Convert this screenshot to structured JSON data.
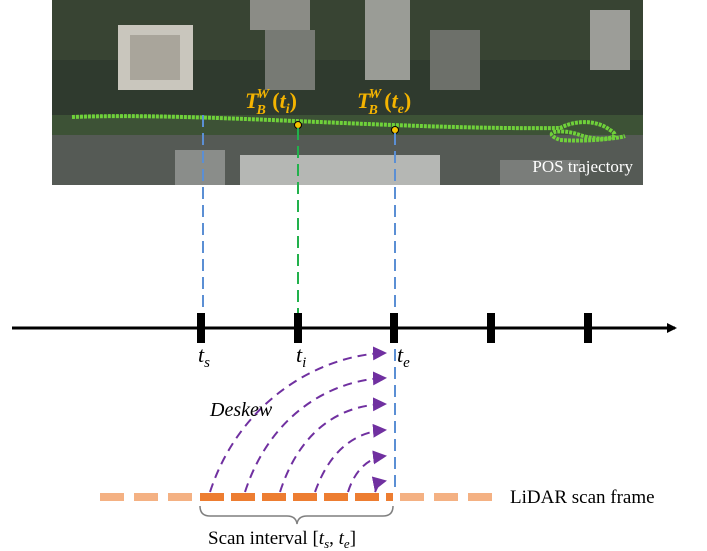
{
  "image_caption": "POS trajectory",
  "pose_labels": [
    {
      "symbol": "T",
      "sub": "B",
      "sup": "W",
      "open": "(",
      "var": "t",
      "var_sub": "i",
      "close": ")"
    },
    {
      "symbol": "T",
      "sub": "B",
      "sup": "W",
      "open": "(",
      "var": "t",
      "var_sub": "e",
      "close": ")"
    }
  ],
  "time_labels": [
    {
      "var": "t",
      "sub": "s"
    },
    {
      "var": "t",
      "sub": "i"
    },
    {
      "var": "t",
      "sub": "e"
    }
  ],
  "deskew_label": "Deskew",
  "frame_label": "LiDAR scan frame",
  "interval_label": {
    "text": "Scan interval [",
    "var1": "t",
    "sub1": "s",
    "sep": ", ",
    "var2": "t",
    "sub2": "e",
    "close": "]"
  }
}
